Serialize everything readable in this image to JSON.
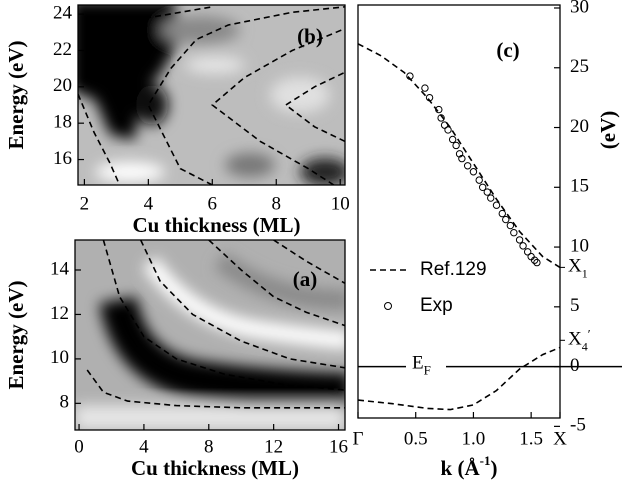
{
  "chart_data": [
    {
      "type": "line",
      "label": "(a)",
      "xlabel": "Cu thickness (ML)",
      "ylabel": "Energy (eV)",
      "xlim": [
        -0.25,
        16.4
      ],
      "ylim": [
        6.8,
        15.35
      ],
      "xticks": [
        0,
        4,
        8,
        12,
        16
      ],
      "yticks": [
        8,
        10,
        12,
        14
      ],
      "line_color": "#000000",
      "line_style": "dashed",
      "series": [
        {
          "x": [
            0.5,
            1.5,
            3,
            6,
            10,
            16.4
          ],
          "values": [
            9.5,
            8.5,
            8.1,
            7.9,
            7.8,
            7.8
          ]
        },
        {
          "x": [
            1.5,
            2.5,
            4,
            6,
            9,
            13,
            16.4
          ],
          "values": [
            15.35,
            12.8,
            11,
            10,
            9.3,
            8.8,
            8.6
          ]
        },
        {
          "x": [
            3.8,
            5,
            7,
            10,
            13,
            16.4
          ],
          "values": [
            15.35,
            13.5,
            12,
            10.8,
            10,
            9.6
          ]
        },
        {
          "x": [
            8,
            10,
            12,
            14,
            16.4
          ],
          "values": [
            15.35,
            14,
            12.8,
            12.1,
            11.5
          ]
        },
        {
          "x": [
            12,
            14,
            16.4
          ],
          "values": [
            15.35,
            14.4,
            13.4
          ]
        }
      ]
    },
    {
      "type": "line",
      "label": "(b)",
      "xlabel": "Cu thickness (ML)",
      "ylabel": "Energy (eV)",
      "xlim": [
        1.8,
        10.15
      ],
      "ylim": [
        14.6,
        24.5
      ],
      "xticks": [
        2,
        4,
        6,
        8,
        10
      ],
      "yticks": [
        16,
        18,
        20,
        22,
        24
      ],
      "line_color": "#000000",
      "line_style": "dashed",
      "series": [
        {
          "x": [
            1.8,
            2.3,
            2.8,
            3.1
          ],
          "values": [
            19.6,
            17.5,
            15.8,
            14.6
          ]
        },
        {
          "x": [
            6,
            5,
            4,
            4.7,
            5.5,
            6.5,
            8.5,
            10.15
          ],
          "values": [
            14.6,
            15.5,
            19,
            21,
            22.6,
            23.4,
            24.1,
            24.4
          ]
        },
        {
          "x": [
            9.8,
            9,
            7.5,
            6,
            7,
            8.5,
            10.15
          ],
          "values": [
            14.6,
            15.5,
            17,
            19,
            20.5,
            22,
            23.2
          ]
        },
        {
          "x": [
            10.15,
            9.2,
            8.3,
            9.2,
            10.15
          ],
          "values": [
            17,
            17.8,
            19,
            20,
            20.8
          ]
        },
        {
          "x": [
            3,
            4,
            5,
            6
          ],
          "values": [
            23.3,
            23.8,
            24.1,
            24.4
          ]
        }
      ]
    },
    {
      "type": "scatter",
      "label": "(c)",
      "xlabel": {
        "text": "k (Å",
        "sup": "-1",
        "end": ")"
      },
      "ylabel": "(eV)",
      "yaxis_side": "right",
      "legend": "left",
      "line_style": "dashed",
      "xlim": [
        0,
        1.75
      ],
      "ylim": [
        -4.3,
        30.25
      ],
      "xticks": [
        {
          "value": 0,
          "label": "Γ"
        },
        0.5,
        {
          "value": 1,
          "label": "1.0"
        },
        1.5,
        {
          "value": 1.75,
          "label": "X"
        }
      ],
      "yticks": [
        -5,
        0,
        5,
        10,
        15,
        20,
        25,
        30
      ],
      "series": [
        {
          "name": "Ref.129",
          "type": "line",
          "color": "#000000",
          "x": [
            0,
            0.2,
            0.4,
            0.6,
            0.8,
            1.0,
            1.2,
            1.4,
            1.6,
            1.75,
            null,
            0,
            0.3,
            0.6,
            0.8,
            1.0,
            1.2,
            1.4,
            1.6,
            1.75
          ],
          "values": [
            27,
            26,
            24.6,
            22.5,
            20,
            17,
            14,
            11.3,
            9.2,
            8.3,
            null,
            -2.8,
            -3.1,
            -3.5,
            -3.6,
            -3.2,
            -2,
            -0.2,
            1,
            1.6
          ]
        },
        {
          "name": "Exp",
          "type": "scatter",
          "color": "#000000",
          "x": [
            0.45,
            0.58,
            0.62,
            0.7,
            0.72,
            0.75,
            0.78,
            0.82,
            0.85,
            0.88,
            0.9,
            0.95,
            1.0,
            1.05,
            1.08,
            1.12,
            1.15,
            1.2,
            1.25,
            1.28,
            1.32,
            1.35,
            1.4,
            1.43,
            1.47,
            1.5,
            1.53,
            1.55
          ],
          "values": [
            24.3,
            23.3,
            22.5,
            21.5,
            20.8,
            20.2,
            19.8,
            19.0,
            18.5,
            17.8,
            17.4,
            16.8,
            16.3,
            15.6,
            15.0,
            14.6,
            14.1,
            13.5,
            12.8,
            12.3,
            11.8,
            11.2,
            10.6,
            10.1,
            9.6,
            9.2,
            8.9,
            8.7
          ]
        }
      ],
      "fermi": {
        "text": "E",
        "sub": "F",
        "value": 0
      },
      "points": [
        {
          "text": "X",
          "sub": "1",
          "value": 8.3
        },
        {
          "text": "X",
          "sub": "4",
          "sup": "′",
          "value": 2.2
        }
      ]
    }
  ]
}
